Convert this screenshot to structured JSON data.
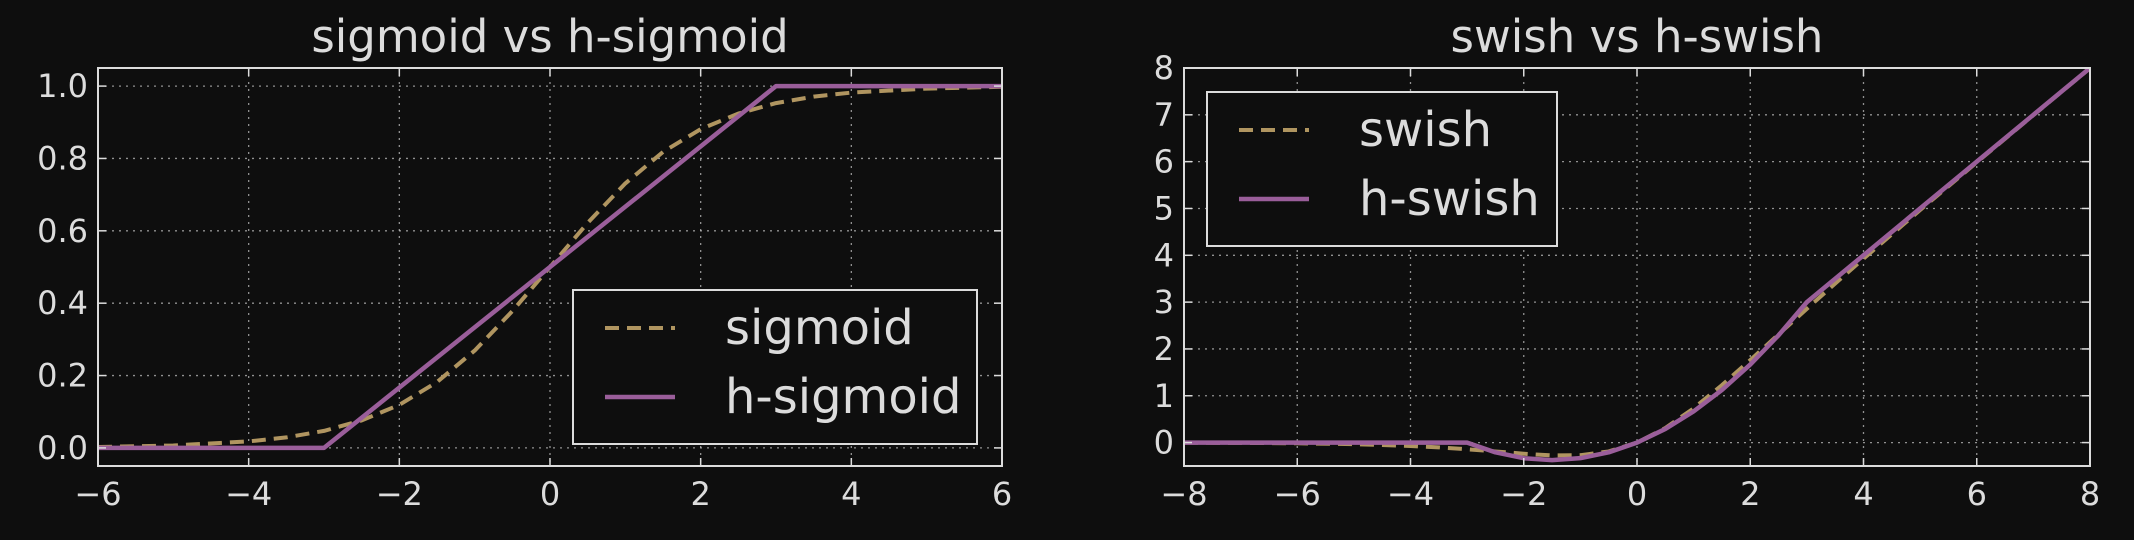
{
  "colors": {
    "background": "#0e0e0e",
    "foreground": "#dcdcdc",
    "dashed_series": "#b09560",
    "solid_series": "#9a5e9a"
  },
  "chart_data": [
    {
      "type": "line",
      "title": "sigmoid vs h-sigmoid",
      "xlabel": "",
      "ylabel": "",
      "xlim": [
        -6,
        6
      ],
      "ylim": [
        -0.05,
        1.05
      ],
      "xticks": [
        -6,
        -4,
        -2,
        0,
        2,
        4,
        6
      ],
      "xtick_labels": [
        "−6",
        "−4",
        "−2",
        "0",
        "2",
        "4",
        "6"
      ],
      "yticks": [
        0.0,
        0.2,
        0.4,
        0.6,
        0.8,
        1.0
      ],
      "ytick_labels": [
        "0.0",
        "0.2",
        "0.4",
        "0.6",
        "0.8",
        "1.0"
      ],
      "grid": true,
      "legend": {
        "position": "lower-right"
      },
      "series": [
        {
          "name": "sigmoid",
          "style": "dashed",
          "color": "#b09560",
          "x": [
            -6,
            -5,
            -4,
            -3.5,
            -3,
            -2.5,
            -2,
            -1.5,
            -1,
            -0.5,
            0,
            0.5,
            1,
            1.5,
            2,
            2.5,
            3,
            3.5,
            4,
            5,
            6
          ],
          "y": [
            0.0025,
            0.0067,
            0.018,
            0.029,
            0.047,
            0.076,
            0.119,
            0.182,
            0.269,
            0.378,
            0.5,
            0.622,
            0.731,
            0.818,
            0.881,
            0.924,
            0.953,
            0.971,
            0.982,
            0.993,
            0.998
          ]
        },
        {
          "name": "h-sigmoid",
          "style": "solid",
          "color": "#9a5e9a",
          "x": [
            -6,
            -3,
            3,
            6
          ],
          "y": [
            0,
            0,
            1,
            1
          ]
        }
      ]
    },
    {
      "type": "line",
      "title": "swish vs h-swish",
      "xlabel": "",
      "ylabel": "",
      "xlim": [
        -8,
        8
      ],
      "ylim": [
        -0.5,
        8
      ],
      "xticks": [
        -8,
        -6,
        -4,
        -2,
        0,
        2,
        4,
        6,
        8
      ],
      "xtick_labels": [
        "−8",
        "−6",
        "−4",
        "−2",
        "0",
        "2",
        "4",
        "6",
        "8"
      ],
      "yticks": [
        0,
        1,
        2,
        3,
        4,
        5,
        6,
        7,
        8
      ],
      "ytick_labels": [
        "0",
        "1",
        "2",
        "3",
        "4",
        "5",
        "6",
        "7",
        "8"
      ],
      "grid": true,
      "legend": {
        "position": "upper-left"
      },
      "series": [
        {
          "name": "swish",
          "style": "dashed",
          "color": "#b09560",
          "x": [
            -8,
            -7,
            -6,
            -5,
            -4,
            -3.5,
            -3,
            -2.5,
            -2,
            -1.5,
            -1,
            -0.5,
            0,
            0.5,
            1,
            1.5,
            2,
            2.5,
            3,
            3.5,
            4,
            5,
            6,
            7,
            8
          ],
          "y": [
            -0.003,
            -0.006,
            -0.015,
            -0.033,
            -0.072,
            -0.102,
            -0.142,
            -0.189,
            -0.238,
            -0.274,
            -0.269,
            -0.189,
            0,
            0.311,
            0.731,
            1.227,
            1.762,
            2.311,
            2.858,
            3.398,
            3.928,
            4.967,
            5.985,
            6.994,
            7.997
          ]
        },
        {
          "name": "h-swish",
          "style": "solid",
          "color": "#9a5e9a",
          "x": [
            -8,
            -3,
            -2.5,
            -2,
            -1.5,
            -1,
            -0.5,
            0,
            0.5,
            1,
            1.5,
            2,
            2.5,
            3,
            8
          ],
          "y": [
            0,
            0,
            -0.208,
            -0.333,
            -0.375,
            -0.333,
            -0.208,
            0,
            0.292,
            0.667,
            1.125,
            1.667,
            2.292,
            3,
            8
          ]
        }
      ]
    }
  ]
}
